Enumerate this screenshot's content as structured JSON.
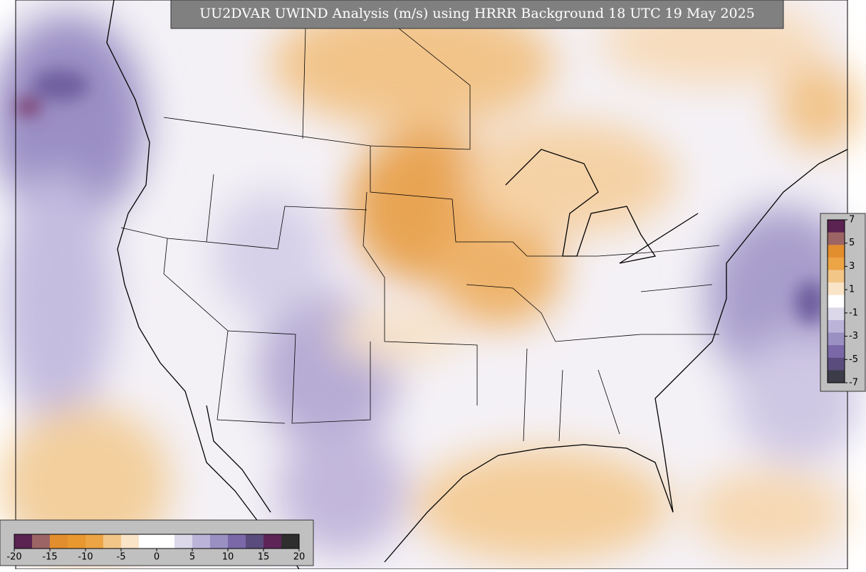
{
  "title": "UU2DVAR UWIND Analysis (m/s) using HRRR Background 18 UTC 19 May 2025",
  "legend_right": {
    "ticks": [
      7,
      5,
      3,
      1,
      -1,
      -3,
      -5,
      -7
    ],
    "colors": [
      "#5a2352",
      "#9c6464",
      "#e28d2e",
      "#eca445",
      "#f2c687",
      "#f9e4c8",
      "#ffffff",
      "#dcd8ea",
      "#bcb4d8",
      "#9a90c2",
      "#7a68a8",
      "#5a4c7c",
      "#3c3c48"
    ]
  },
  "legend_bottom": {
    "ticks": [
      -20,
      -15,
      -10,
      -5,
      0,
      5,
      10,
      15,
      20
    ],
    "colors": [
      "#5a2352",
      "#9c6464",
      "#e28d2e",
      "#e8982f",
      "#eca445",
      "#f2c687",
      "#f9e4c8",
      "#ffffff",
      "#ffffff",
      "#dcd8ea",
      "#bcb4d8",
      "#9a90c2",
      "#7a68a8",
      "#5a4c7c",
      "#5e2458",
      "#2e2e2e"
    ]
  }
}
